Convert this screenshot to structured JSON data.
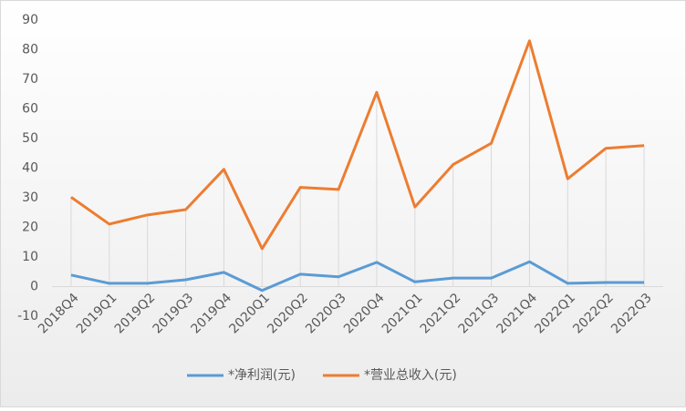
{
  "chart_data": {
    "type": "line",
    "categories": [
      "2018Q4",
      "2019Q1",
      "2019Q2",
      "2019Q3",
      "2019Q4",
      "2020Q1",
      "2020Q2",
      "2020Q3",
      "2020Q4",
      "2021Q1",
      "2021Q2",
      "2021Q3",
      "2021Q4",
      "2022Q1",
      "2022Q2",
      "2022Q3"
    ],
    "series": [
      {
        "name": "*净利润(元)",
        "color": "#5b9bd5",
        "values": [
          3.9,
          1.1,
          1.1,
          2.3,
          4.8,
          -1.3,
          4.2,
          3.3,
          8.2,
          1.6,
          2.9,
          2.9,
          8.4,
          1.1,
          1.4,
          1.4
        ]
      },
      {
        "name": "*营业总收入(元)",
        "color": "#ed7d31",
        "values": [
          30.2,
          21.1,
          24.2,
          26,
          39.6,
          12.8,
          33.5,
          32.8,
          65.6,
          26.9,
          41.2,
          48.4,
          83,
          36.4,
          46.7,
          47.6
        ]
      }
    ],
    "ylim": [
      -10,
      90
    ],
    "yticks": [
      -10,
      0,
      10,
      20,
      30,
      40,
      50,
      60,
      70,
      80,
      90
    ],
    "drop_lines": true,
    "legend": "bottom"
  }
}
